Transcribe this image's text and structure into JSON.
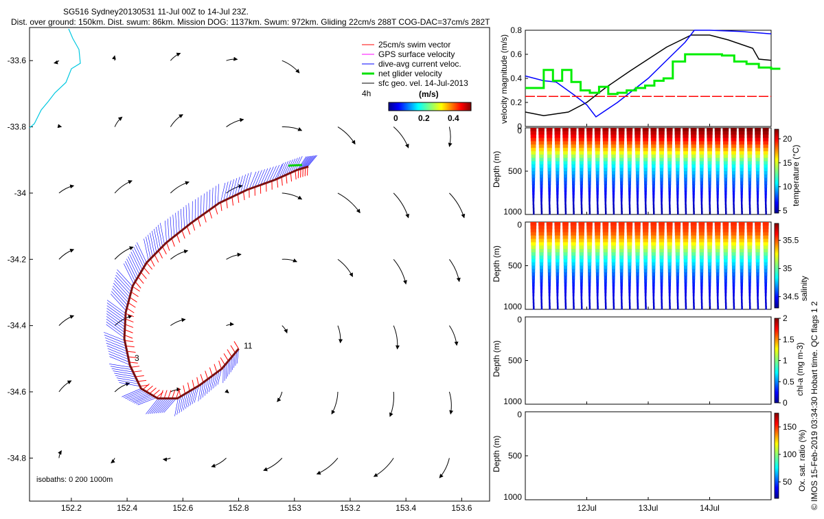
{
  "header": {
    "title": "SG516 Sydney20130531 11-Jul 00Z to 14-Jul 23Z.",
    "subtitle": "Dist. over ground: 150km. Dist. swum: 86km. Mission DOG: 1137km. Swum: 972km. Gliding 22cm/s 288T COG-DAC=37cm/s 282T"
  },
  "map": {
    "legend": [
      {
        "label": "25cm/s swim vector",
        "color": "#ff0000"
      },
      {
        "label": "GPS surface velocity",
        "color": "#ff00ff"
      },
      {
        "label": "dive-avg current veloc.",
        "color": "#0000ff"
      },
      {
        "label": "net glider velocity",
        "color": "#00e000"
      },
      {
        "label": "sfc geo. vel. 14-Jul-2013",
        "color": "#000000"
      }
    ],
    "legend_note": "4h",
    "colorbar": {
      "label": "(m/s)",
      "ticks": [
        "0",
        "0.2",
        "0.4"
      ]
    },
    "isobaths_label": "isobaths: 0   200  1000m",
    "marker_labels": [
      "3",
      "11"
    ],
    "coastline_color": "#00c8e0",
    "dac_color": "#0000ff",
    "swim_color": "#ff0000"
  },
  "right_label": "© IMOS 15-Feb-2019 03:34:30 Hobart time. QC flags 1  2",
  "chart_data": [
    {
      "type": "scatter",
      "name": "map",
      "xticks": [
        "152.2",
        "152.4",
        "152.6",
        "152.8",
        "153",
        "153.2",
        "153.4",
        "153.6"
      ],
      "yticks": [
        "-33.6",
        "-33.8",
        "-34",
        "-34.2",
        "-34.4",
        "-34.6",
        "-34.8"
      ],
      "xlim": [
        152.05,
        153.7
      ],
      "ylim": [
        -34.93,
        -33.5
      ],
      "glider_track": {
        "lon": [
          152.8,
          152.74,
          152.66,
          152.58,
          152.51,
          152.45,
          152.41,
          152.39,
          152.395,
          152.42,
          152.47,
          152.54,
          152.63,
          152.73,
          152.83,
          152.93,
          153.01,
          153.05
        ],
        "lat": [
          -34.47,
          -34.53,
          -34.58,
          -34.62,
          -34.62,
          -34.59,
          -34.52,
          -34.44,
          -34.36,
          -34.28,
          -34.21,
          -34.15,
          -34.09,
          -34.03,
          -33.99,
          -33.96,
          -33.93,
          -33.92
        ]
      },
      "surface_vectors": {
        "lon": [
          152.2,
          152.4,
          152.6,
          152.8,
          153.0,
          153.2,
          153.4,
          153.6
        ],
        "lat": [
          -33.6,
          -33.8,
          -34.0,
          -34.2,
          -34.4,
          -34.6,
          -34.8
        ],
        "u": [
          [
            -0.04,
            0.0,
            0.08,
            0.09,
            0.14,
            0.0,
            0.0,
            0.0
          ],
          [
            0.02,
            0.06,
            0.1,
            0.14,
            0.16,
            0.14,
            0.12,
            0.0
          ],
          [
            0.12,
            0.14,
            0.15,
            0.13,
            0.16,
            0.18,
            0.12,
            0.12
          ],
          [
            0.12,
            0.15,
            0.14,
            0.12,
            0.12,
            0.12,
            0.1,
            0.08
          ],
          [
            0.12,
            0.14,
            0.12,
            0.06,
            0.04,
            0.02,
            0.03,
            0.06
          ],
          [
            0.1,
            0.12,
            0.08,
            0.02,
            -0.04,
            -0.05,
            -0.03,
            0.01
          ],
          [
            0.02,
            -0.03,
            -0.06,
            -0.12,
            -0.15,
            -0.17,
            -0.16,
            -0.08
          ]
        ],
        "v": [
          [
            -0.02,
            0.04,
            0.06,
            0.01,
            -0.1,
            0.0,
            0.0,
            0.0
          ],
          [
            0.0,
            0.08,
            0.1,
            0.06,
            -0.03,
            -0.14,
            -0.17,
            -0.16
          ],
          [
            0.06,
            0.1,
            0.09,
            0.06,
            -0.05,
            -0.16,
            -0.2,
            -0.2
          ],
          [
            0.08,
            0.1,
            0.07,
            0.04,
            -0.02,
            -0.14,
            -0.2,
            -0.18
          ],
          [
            0.08,
            0.08,
            0.05,
            0.01,
            -0.06,
            -0.14,
            -0.19,
            -0.16
          ],
          [
            0.09,
            0.07,
            0.02,
            -0.01,
            -0.08,
            -0.18,
            -0.2,
            -0.18
          ],
          [
            0.06,
            -0.04,
            -0.01,
            -0.07,
            -0.1,
            -0.13,
            -0.15,
            -0.16
          ]
        ]
      }
    },
    {
      "type": "line",
      "name": "velocity",
      "ylabel": "velocity magnitude (m/s)",
      "ylim": [
        0,
        0.8
      ],
      "yticks": [
        "0",
        "0.2",
        "0.4",
        "0.6",
        "0.8"
      ],
      "xlim_days": [
        11.0,
        15.0
      ],
      "series": [
        {
          "color": "#000000",
          "x": [
            11.0,
            11.3,
            11.7,
            12.0,
            12.3,
            12.7,
            13.0,
            13.3,
            13.7,
            14.0,
            14.3,
            14.7,
            14.8,
            15.0
          ],
          "y": [
            0.12,
            0.09,
            0.12,
            0.2,
            0.32,
            0.46,
            0.56,
            0.66,
            0.76,
            0.76,
            0.72,
            0.65,
            0.56,
            0.55
          ]
        },
        {
          "color": "#0000ff",
          "x": [
            11.0,
            11.3,
            11.5,
            11.8,
            12.0,
            12.15,
            12.5,
            12.8,
            13.0,
            13.3,
            13.6,
            13.75,
            14.0,
            14.5,
            15.0
          ],
          "y": [
            0.42,
            0.38,
            0.37,
            0.26,
            0.18,
            0.08,
            0.2,
            0.32,
            0.4,
            0.55,
            0.7,
            0.8,
            0.8,
            0.79,
            0.77
          ]
        },
        {
          "color": "#00ee00",
          "x": [
            11.0,
            11.15,
            11.3,
            11.45,
            11.6,
            11.75,
            11.9,
            12.05,
            12.2,
            12.35,
            12.5,
            12.65,
            12.8,
            12.95,
            13.1,
            13.25,
            13.4,
            13.6,
            13.8,
            14.0,
            14.2,
            14.4,
            14.6,
            14.8,
            15.0
          ],
          "y": [
            0.32,
            0.32,
            0.47,
            0.38,
            0.47,
            0.37,
            0.3,
            0.28,
            0.33,
            0.27,
            0.28,
            0.3,
            0.32,
            0.34,
            0.38,
            0.4,
            0.54,
            0.6,
            0.6,
            0.6,
            0.59,
            0.54,
            0.52,
            0.49,
            0.48
          ]
        },
        {
          "color": "#ff0000",
          "x": [
            11.0,
            15.0
          ],
          "y": [
            0.25,
            0.25
          ]
        }
      ]
    },
    {
      "type": "heatmap",
      "name": "temperature",
      "ylabel": "Depth (m)",
      "colorbar_label": "temperature (°C)",
      "clim": [
        4.5,
        22
      ],
      "colorbar_ticks": [
        "20",
        "15",
        "10",
        "5"
      ],
      "yticks": [
        "0",
        "500",
        "1000"
      ],
      "ylim": [
        0,
        1000
      ],
      "profile_depths": [
        0,
        100,
        200,
        300,
        400,
        600,
        800,
        1000
      ],
      "profile_values": [
        21,
        19.5,
        17,
        14,
        11,
        8,
        6,
        5
      ],
      "n_dives": 30
    },
    {
      "type": "heatmap",
      "name": "salinity",
      "ylabel": "Depth (m)",
      "colorbar_label": "salinity",
      "clim": [
        34.3,
        35.8
      ],
      "colorbar_ticks": [
        "35.5",
        "35",
        "34.5"
      ],
      "yticks": [
        "0",
        "500",
        "1000"
      ],
      "ylim": [
        0,
        1000
      ],
      "profile_depths": [
        0,
        100,
        200,
        300,
        400,
        600,
        800,
        1000
      ],
      "profile_values": [
        35.55,
        35.5,
        35.3,
        35.1,
        34.9,
        34.6,
        34.45,
        34.4
      ],
      "n_dives": 30
    },
    {
      "type": "heatmap",
      "name": "chla",
      "ylabel": "Depth (m)",
      "colorbar_label": "chl-a (mg m-3)",
      "clim": [
        0,
        2
      ],
      "colorbar_ticks": [
        "2",
        "1.5",
        "1",
        "0.5",
        "0"
      ],
      "yticks": [
        "0",
        "500",
        "1000"
      ],
      "ylim": [
        0,
        1000
      ]
    },
    {
      "type": "heatmap",
      "name": "oxygen",
      "ylabel": "Depth (m)",
      "colorbar_label": "Ox. sat. ratio (%)",
      "clim": [
        20,
        175
      ],
      "colorbar_ticks": [
        "150",
        "100",
        "50"
      ],
      "yticks": [
        "0",
        "500",
        "1000"
      ],
      "ylim": [
        0,
        1000
      ],
      "xticks": [
        "12Jul",
        "13Jul",
        "14Jul"
      ],
      "xtick_days": [
        12,
        13,
        14
      ]
    }
  ]
}
